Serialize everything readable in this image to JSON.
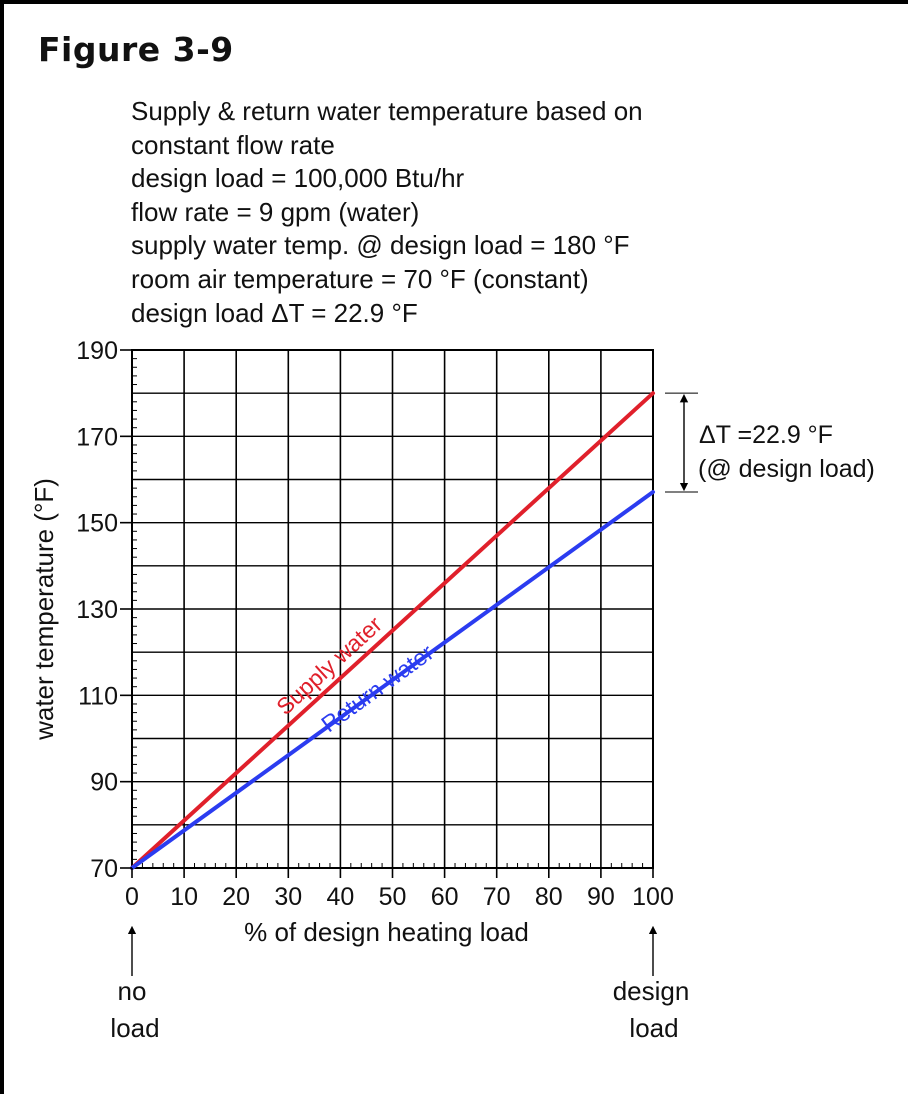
{
  "figure": {
    "title": "Figure 3-9",
    "description_lines": [
      "Supply & return water temperature based on",
      "constant flow rate",
      "design load = 100,000 Btu/hr",
      "flow rate = 9 gpm (water)",
      "supply water temp. @ design load = 180 °F",
      "room air temperature = 70 °F (constant)",
      "design load ΔT = 22.9 °F"
    ]
  },
  "annotations": {
    "delta_t_line1": "ΔT =22.9 °F",
    "delta_t_line2": "(@ design load)",
    "no_load_1": "no",
    "no_load_2": "load",
    "design_load_1": "design",
    "design_load_2": "load"
  },
  "colors": {
    "supply": "#e0202b",
    "return": "#2b3cf0",
    "grid": "#000000"
  },
  "chart_data": {
    "type": "line",
    "xlabel": "% of design heating load",
    "ylabel": "water temperature (°F)",
    "xlim": [
      0,
      100
    ],
    "ylim": [
      70,
      190
    ],
    "x_ticks": [
      0,
      10,
      20,
      30,
      40,
      50,
      60,
      70,
      80,
      90,
      100
    ],
    "y_ticks": [
      70,
      90,
      110,
      130,
      150,
      170,
      190
    ],
    "grid": true,
    "series": [
      {
        "name": "Supply water",
        "x": [
          0,
          100
        ],
        "y": [
          70,
          180
        ],
        "color": "#e0202b"
      },
      {
        "name": "Return water",
        "x": [
          0,
          100
        ],
        "y": [
          70,
          157.1
        ],
        "color": "#2b3cf0"
      }
    ]
  }
}
